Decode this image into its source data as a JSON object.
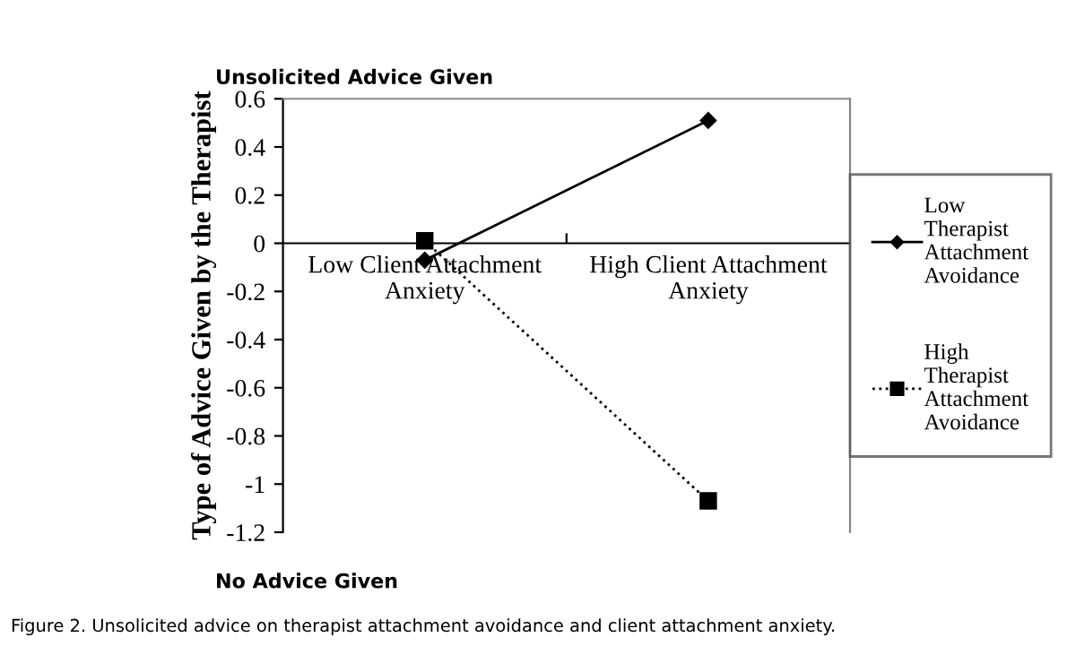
{
  "chart_data": {
    "type": "line",
    "ylabel": "Type of Advice Given by the Therapist",
    "categories": [
      "Low Client Attachment\nAnxiety",
      "High Client Attachment\nAnxiety"
    ],
    "series": [
      {
        "name": "Low\nTherapist\nAttachment\nAvoidance",
        "color": "#000000",
        "values": [
          -0.07,
          0.51
        ],
        "marker": "diamond",
        "line_style": "solid"
      },
      {
        "name": "High\nTherapist\nAttachment\nAvoidance",
        "color": "#000000",
        "values": [
          0.01,
          -1.07
        ],
        "marker": "square",
        "line_style": "dotted"
      }
    ],
    "ylim": [
      -1.2,
      0.6
    ],
    "yticks": [
      {
        "value": -1.2,
        "label": "-1.2"
      },
      {
        "value": -1.0,
        "label": "-1"
      },
      {
        "value": -0.8,
        "label": "-0.8"
      },
      {
        "value": -0.6,
        "label": "-0.6"
      },
      {
        "value": -0.4,
        "label": "-0.4"
      },
      {
        "value": -0.2,
        "label": "-0.2"
      },
      0,
      0.2,
      0.4,
      0.6
    ],
    "grid": false,
    "legend": "right",
    "annotations": [
      "Unsolicited Advice Given",
      "No Advice Given",
      "Figure 2. Unsolicited advice on therapist attachment avoidance and client attachment anxiety."
    ]
  }
}
